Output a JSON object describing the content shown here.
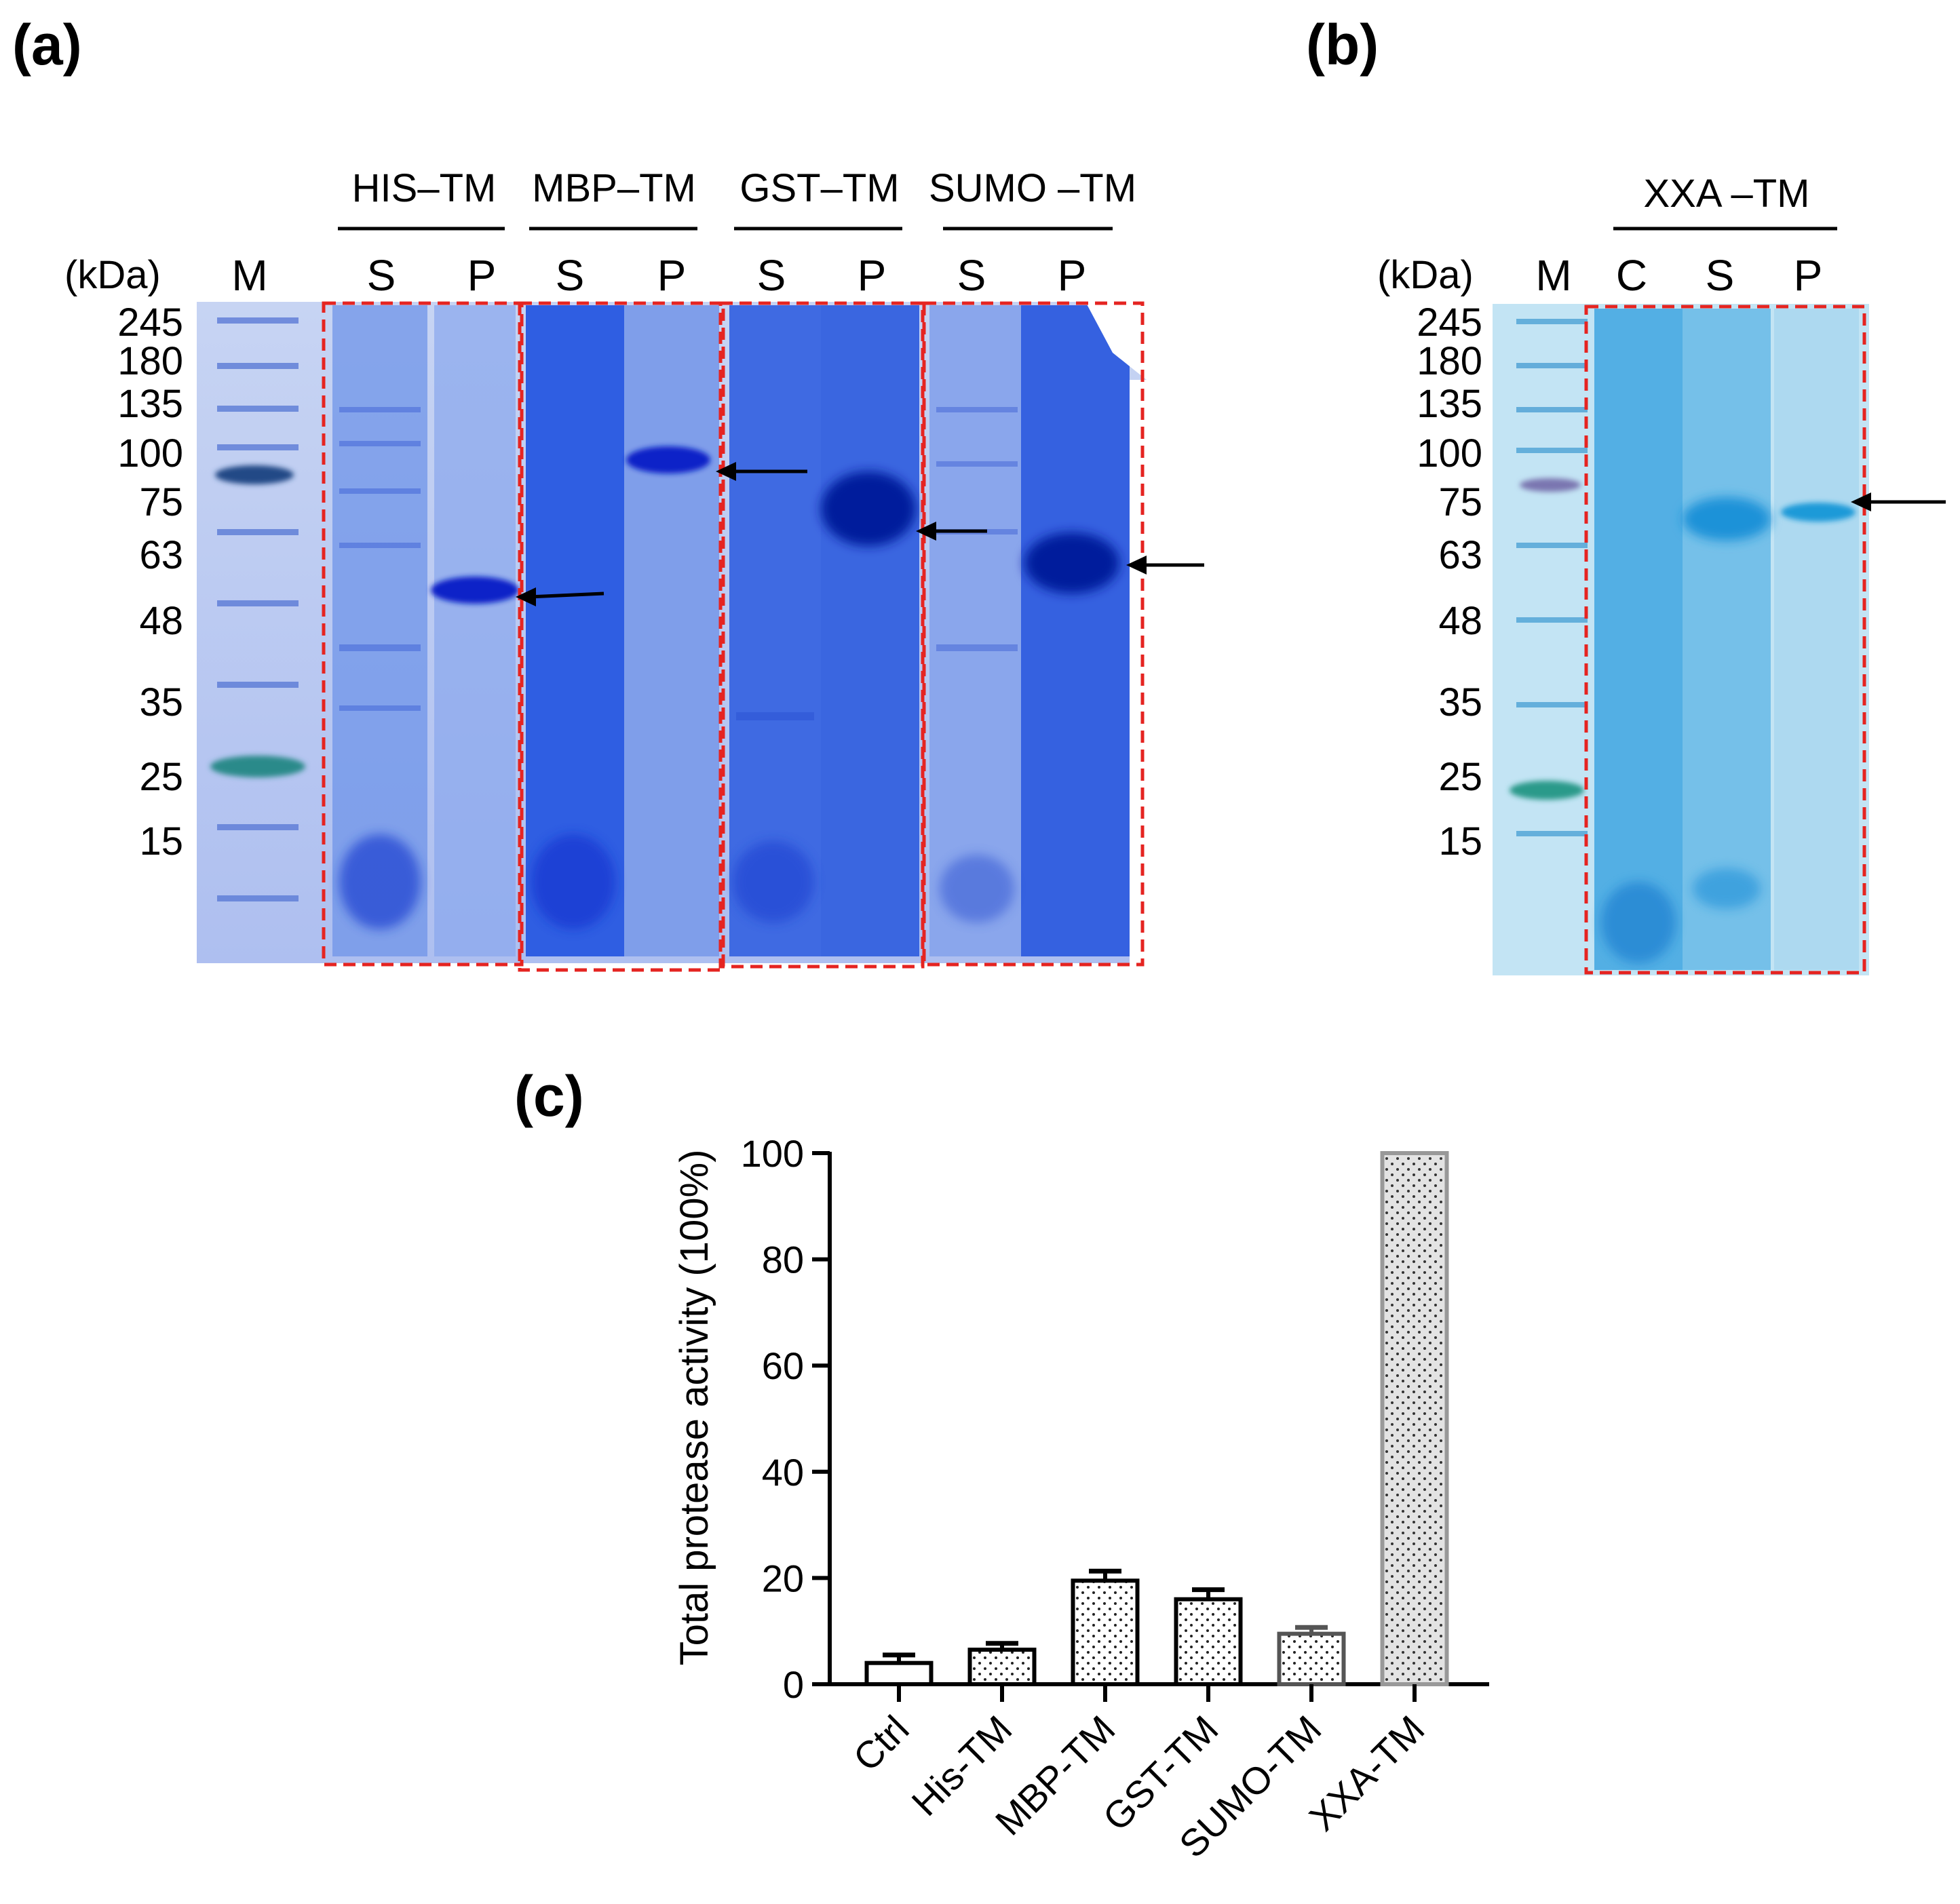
{
  "panel_a": {
    "label": "(a)",
    "unit_label": "(kDa)",
    "marker_lane_label": "M",
    "mw_ticks": [
      "245",
      "180",
      "135",
      "100",
      "75",
      "63",
      "48",
      "35",
      "25",
      "15"
    ],
    "groups": [
      {
        "name": "HIS–TM",
        "lanes": [
          "S",
          "P"
        ]
      },
      {
        "name": "MBP–TM",
        "lanes": [
          "S",
          "P"
        ]
      },
      {
        "name": "GST–TM",
        "lanes": [
          "S",
          "P"
        ]
      },
      {
        "name": "SUMO –TM",
        "lanes": [
          "S",
          "P"
        ]
      }
    ]
  },
  "panel_b": {
    "label": "(b)",
    "unit_label": "(kDa)",
    "marker_lane_label": "M",
    "mw_ticks": [
      "245",
      "180",
      "135",
      "100",
      "75",
      "63",
      "48",
      "35",
      "25",
      "15"
    ],
    "groups": [
      {
        "name": "XXA –TM",
        "lanes": [
          "C",
          "S",
          "P"
        ]
      }
    ]
  },
  "panel_c": {
    "label": "(c)"
  },
  "chart_data": {
    "type": "bar",
    "title": "",
    "xlabel": "",
    "ylabel": "Total protease activity (100%)",
    "ylim": [
      0,
      100
    ],
    "yticks": [
      0,
      20,
      40,
      60,
      80,
      100
    ],
    "categories": [
      "Ctrl",
      "His-TM",
      "MBP-TM",
      "GST-TM",
      "SUMO-TM",
      "XXA-TM"
    ],
    "values": [
      4,
      6.5,
      19.5,
      16,
      9.5,
      100
    ],
    "errors": [
      1.5,
      1.2,
      1.8,
      1.8,
      1.2,
      0
    ],
    "bar_edge_colors": [
      "#000000",
      "#000000",
      "#000000",
      "#000000",
      "#555555",
      "#999999"
    ],
    "bar_fill_colors": [
      "#ffffff",
      "#ffffff",
      "#ffffff",
      "#ffffff",
      "#ffffff",
      "#e6e6e6"
    ]
  },
  "colors": {
    "gel_light": "#b7c8ee",
    "gel_mid": "#7c9ce8",
    "band_dark": "#0a22c8",
    "band_medium": "#2a56e0",
    "marker_teal": "#2a8a8a",
    "dash_red": "#e52421",
    "gel_b_bg": "#bfe3f3",
    "gel_b_band": "#1f9fdd"
  }
}
